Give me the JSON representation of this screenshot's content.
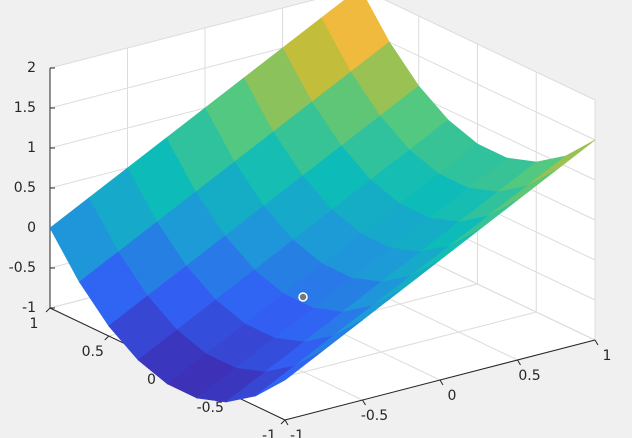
{
  "chart_data": {
    "type": "surface",
    "x": [
      -1,
      -0.75,
      -0.5,
      -0.25,
      0,
      0.25,
      0.5,
      0.75,
      1
    ],
    "y": [
      -1,
      -0.75,
      -0.5,
      -0.25,
      0,
      0.25,
      0.5,
      0.75,
      1
    ],
    "z": [
      [
        -0.5,
        -0.25,
        0,
        0.25,
        0.5,
        0.75,
        1,
        1.25,
        1.5
      ],
      [
        -0.875,
        -0.625,
        -0.375,
        -0.125,
        0.125,
        0.375,
        0.625,
        0.875,
        1.125
      ],
      [
        -1.125,
        -0.875,
        -0.625,
        -0.375,
        -0.125,
        0.125,
        0.375,
        0.625,
        0.875
      ],
      [
        -1.25,
        -1,
        -0.75,
        -0.5,
        -0.25,
        0,
        0.25,
        0.5,
        0.75
      ],
      [
        -1.25,
        -1,
        -0.75,
        -0.5,
        -0.25,
        0,
        0.25,
        0.5,
        0.75
      ],
      [
        -1.125,
        -0.875,
        -0.625,
        -0.375,
        -0.125,
        0.125,
        0.375,
        0.625,
        0.875
      ],
      [
        -0.875,
        -0.625,
        -0.375,
        -0.125,
        0.125,
        0.375,
        0.625,
        0.875,
        1.125
      ],
      [
        -0.5,
        -0.25,
        0,
        0.25,
        0.5,
        0.75,
        1,
        1.25,
        1.5
      ],
      [
        0,
        0.25,
        0.5,
        0.75,
        1,
        1.25,
        1.5,
        1.75,
        2
      ]
    ],
    "xlim": [
      -1,
      1
    ],
    "ylim": [
      -1,
      1
    ],
    "zlim": [
      -1,
      2
    ],
    "xticks": [
      -1,
      -0.5,
      0,
      0.5,
      1
    ],
    "yticks": [
      -1,
      -0.5,
      0,
      0.5,
      1
    ],
    "zticks": [
      -1,
      -0.5,
      0,
      0.5,
      1,
      1.5,
      2
    ],
    "colormap": "parula",
    "grid": true
  }
}
